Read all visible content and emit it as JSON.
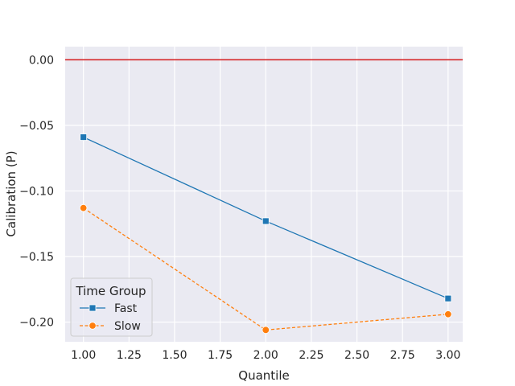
{
  "chart_data": {
    "type": "line",
    "title": "",
    "xlabel": "Quantile",
    "ylabel": "Calibration (P)",
    "xlim": [
      0.9,
      3.08
    ],
    "ylim": [
      -0.215,
      0.01
    ],
    "grid": true,
    "x_ticks": [
      1.0,
      1.25,
      1.5,
      1.75,
      2.0,
      2.25,
      2.5,
      2.75,
      3.0
    ],
    "x_tick_labels": [
      "1.00",
      "1.25",
      "1.50",
      "1.75",
      "2.00",
      "2.25",
      "2.50",
      "2.75",
      "3.00"
    ],
    "y_ticks": [
      0.0,
      -0.05,
      -0.1,
      -0.15,
      -0.2
    ],
    "y_tick_labels": [
      "0.00",
      "−0.05",
      "−0.10",
      "−0.15",
      "−0.20"
    ],
    "reference_line": {
      "y": 0.0,
      "color": "#d62728"
    },
    "legend": {
      "title": "Time Group",
      "position": "lower-left"
    },
    "series": [
      {
        "name": "Fast",
        "x": [
          1,
          2,
          3
        ],
        "values": [
          -0.059,
          -0.123,
          -0.182
        ],
        "color": "#1f77b4",
        "marker": "square",
        "linestyle": "solid"
      },
      {
        "name": "Slow",
        "x": [
          1,
          2,
          3
        ],
        "values": [
          -0.113,
          -0.206,
          -0.194
        ],
        "color": "#ff7f0e",
        "marker": "circle",
        "linestyle": "dashed"
      }
    ]
  }
}
